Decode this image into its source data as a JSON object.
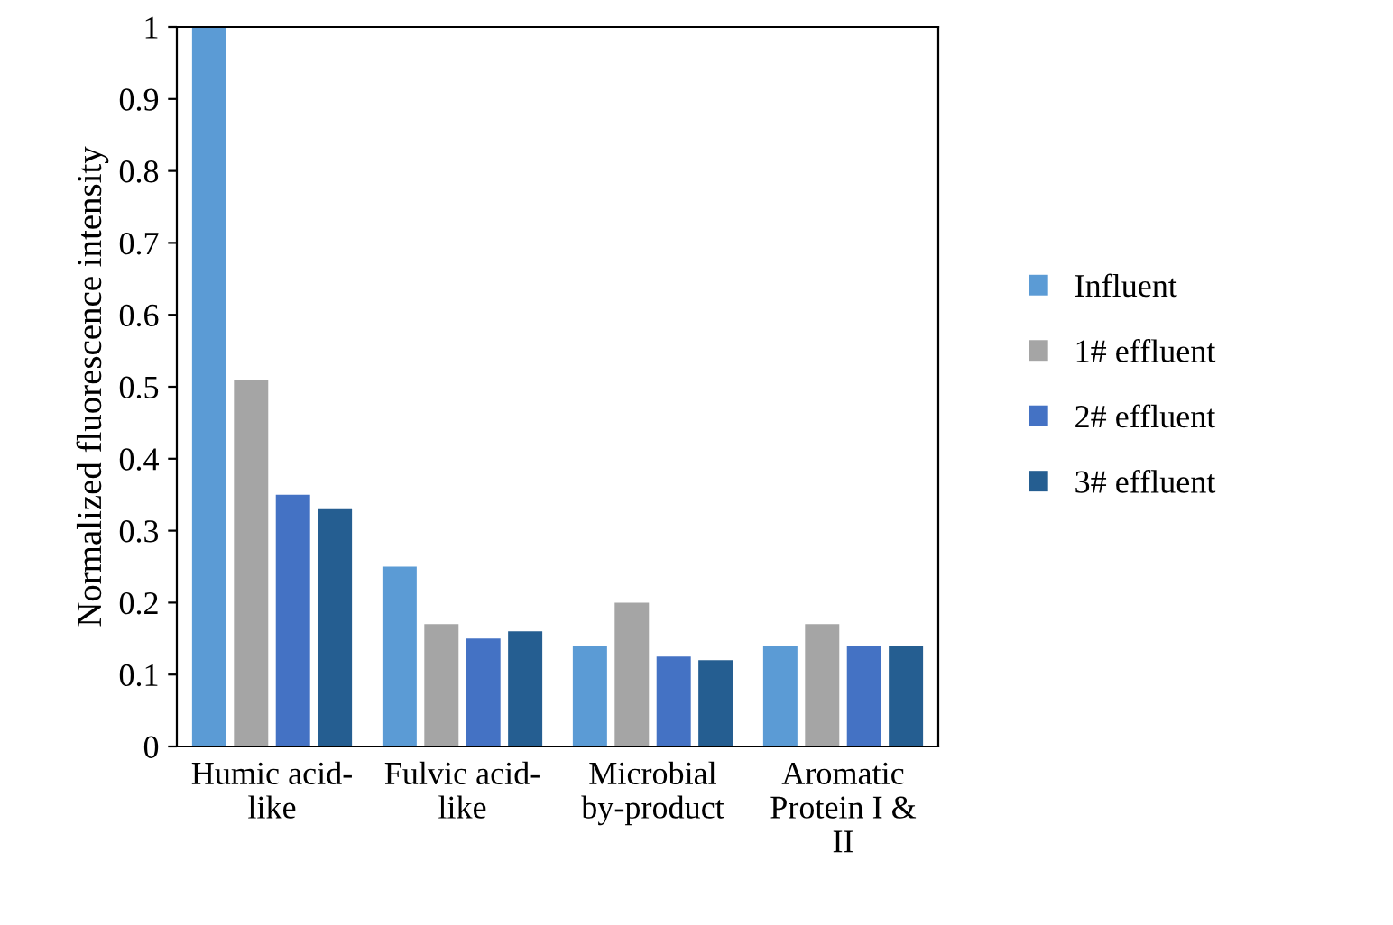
{
  "chart_data": {
    "type": "bar",
    "ylabel": "Normalized fluorescence intensity",
    "categories": [
      "Humic acid-\nlike",
      "Fulvic acid-\nlike",
      "Microbial\nby-product",
      "Aromatic\nProtein I &\nII"
    ],
    "series": [
      {
        "name": "Influent",
        "color": "#5b9bd5",
        "values": [
          1.0,
          0.25,
          0.14,
          0.14
        ]
      },
      {
        "name": "1# effluent",
        "color": "#a5a5a5",
        "values": [
          0.51,
          0.17,
          0.2,
          0.17
        ]
      },
      {
        "name": "2# effluent",
        "color": "#4472c4",
        "values": [
          0.35,
          0.15,
          0.125,
          0.14
        ]
      },
      {
        "name": "3# effluent",
        "color": "#255e91",
        "values": [
          0.33,
          0.16,
          0.12,
          0.14
        ]
      }
    ],
    "ylim": [
      0,
      1
    ],
    "yticks": [
      0,
      0.1,
      0.2,
      0.3,
      0.4,
      0.5,
      0.6,
      0.7,
      0.8,
      0.9,
      1
    ],
    "grid": false,
    "legend": "right"
  }
}
